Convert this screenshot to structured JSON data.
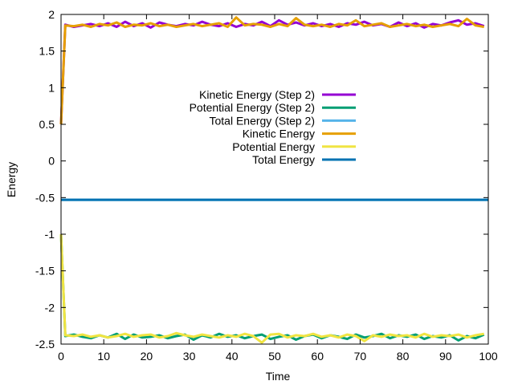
{
  "chart_data": {
    "type": "line",
    "title": "",
    "xlabel": "Time",
    "ylabel": "Energy",
    "xlim": [
      0,
      100
    ],
    "ylim": [
      -2.5,
      2
    ],
    "xticks": [
      "0",
      "10",
      "20",
      "30",
      "40",
      "50",
      "60",
      "70",
      "80",
      "90",
      "100"
    ],
    "yticks": [
      "-2.5",
      "-2",
      "-1.5",
      "-1",
      "-0.5",
      "0",
      "0.5",
      "1",
      "1.5",
      "2"
    ],
    "xtick_values": [
      0,
      10,
      20,
      30,
      40,
      50,
      60,
      70,
      80,
      90,
      100
    ],
    "ytick_values": [
      -2.5,
      -2,
      -1.5,
      -1,
      -0.5,
      0,
      0.5,
      1,
      1.5,
      2
    ],
    "grid": false,
    "legend_position": "center",
    "series": [
      {
        "name": "Kinetic Energy (Step 2)",
        "color": "#9400d3",
        "x": [
          0,
          1,
          3,
          5,
          7,
          9,
          11,
          13,
          15,
          17,
          19,
          21,
          23,
          25,
          27,
          29,
          31,
          33,
          35,
          37,
          39,
          41,
          43,
          45,
          47,
          49,
          51,
          53,
          55,
          57,
          59,
          61,
          63,
          65,
          67,
          69,
          71,
          73,
          75,
          77,
          79,
          81,
          83,
          85,
          87,
          89,
          91,
          93,
          95,
          97,
          99
        ],
        "values": [
          0.5,
          1.86,
          1.83,
          1.85,
          1.87,
          1.84,
          1.88,
          1.83,
          1.9,
          1.84,
          1.88,
          1.82,
          1.89,
          1.86,
          1.84,
          1.87,
          1.85,
          1.9,
          1.86,
          1.84,
          1.88,
          1.83,
          1.87,
          1.85,
          1.9,
          1.84,
          1.92,
          1.86,
          1.89,
          1.85,
          1.88,
          1.84,
          1.87,
          1.83,
          1.88,
          1.86,
          1.9,
          1.85,
          1.87,
          1.83,
          1.89,
          1.84,
          1.88,
          1.82,
          1.87,
          1.85,
          1.89,
          1.92,
          1.86,
          1.88,
          1.84
        ]
      },
      {
        "name": "Potential Energy (Step 2)",
        "color": "#009e73",
        "x": [
          0,
          1,
          3,
          5,
          7,
          9,
          11,
          13,
          15,
          17,
          19,
          21,
          23,
          25,
          27,
          29,
          31,
          33,
          35,
          37,
          39,
          41,
          43,
          45,
          47,
          49,
          51,
          53,
          55,
          57,
          59,
          61,
          63,
          65,
          67,
          69,
          71,
          73,
          75,
          77,
          79,
          81,
          83,
          85,
          87,
          89,
          91,
          93,
          95,
          97,
          99
        ],
        "values": [
          -1.0,
          -2.39,
          -2.37,
          -2.4,
          -2.42,
          -2.38,
          -2.41,
          -2.36,
          -2.43,
          -2.37,
          -2.41,
          -2.4,
          -2.38,
          -2.42,
          -2.39,
          -2.37,
          -2.44,
          -2.38,
          -2.41,
          -2.36,
          -2.4,
          -2.38,
          -2.42,
          -2.39,
          -2.37,
          -2.43,
          -2.4,
          -2.38,
          -2.44,
          -2.39,
          -2.37,
          -2.42,
          -2.38,
          -2.4,
          -2.43,
          -2.37,
          -2.41,
          -2.39,
          -2.36,
          -2.42,
          -2.38,
          -2.4,
          -2.37,
          -2.43,
          -2.39,
          -2.41,
          -2.38,
          -2.45,
          -2.39,
          -2.42,
          -2.37
        ]
      },
      {
        "name": "Total Energy (Step 2)",
        "color": "#56b4e9",
        "x": [
          0,
          100
        ],
        "values": [
          -0.53,
          -0.53
        ]
      },
      {
        "name": "Kinetic Energy",
        "color": "#e69f00",
        "x": [
          0,
          1,
          3,
          5,
          7,
          9,
          11,
          13,
          15,
          17,
          19,
          21,
          23,
          25,
          27,
          29,
          31,
          33,
          35,
          37,
          39,
          41,
          43,
          45,
          47,
          49,
          51,
          53,
          55,
          57,
          59,
          61,
          63,
          65,
          67,
          69,
          71,
          73,
          75,
          77,
          79,
          81,
          83,
          85,
          87,
          89,
          91,
          93,
          95,
          97,
          99
        ],
        "values": [
          0.5,
          1.85,
          1.84,
          1.86,
          1.83,
          1.87,
          1.85,
          1.89,
          1.83,
          1.86,
          1.85,
          1.88,
          1.84,
          1.86,
          1.83,
          1.85,
          1.87,
          1.84,
          1.86,
          1.88,
          1.83,
          1.96,
          1.85,
          1.87,
          1.86,
          1.83,
          1.87,
          1.84,
          1.95,
          1.86,
          1.84,
          1.86,
          1.83,
          1.87,
          1.85,
          1.92,
          1.84,
          1.86,
          1.88,
          1.83,
          1.85,
          1.87,
          1.84,
          1.86,
          1.83,
          1.85,
          1.87,
          1.84,
          1.94,
          1.85,
          1.83
        ]
      },
      {
        "name": "Potential Energy",
        "color": "#f0e442",
        "x": [
          0,
          1,
          3,
          5,
          7,
          9,
          11,
          13,
          15,
          17,
          19,
          21,
          23,
          25,
          27,
          29,
          31,
          33,
          35,
          37,
          39,
          41,
          43,
          45,
          47,
          49,
          51,
          53,
          55,
          57,
          59,
          61,
          63,
          65,
          67,
          69,
          71,
          73,
          75,
          77,
          79,
          81,
          83,
          85,
          87,
          89,
          91,
          93,
          95,
          97,
          99
        ],
        "values": [
          -1.0,
          -2.38,
          -2.39,
          -2.37,
          -2.4,
          -2.38,
          -2.41,
          -2.39,
          -2.36,
          -2.4,
          -2.38,
          -2.37,
          -2.41,
          -2.39,
          -2.35,
          -2.38,
          -2.4,
          -2.37,
          -2.39,
          -2.41,
          -2.38,
          -2.4,
          -2.36,
          -2.39,
          -2.48,
          -2.37,
          -2.36,
          -2.41,
          -2.38,
          -2.39,
          -2.36,
          -2.4,
          -2.38,
          -2.41,
          -2.37,
          -2.39,
          -2.46,
          -2.38,
          -2.4,
          -2.37,
          -2.39,
          -2.38,
          -2.41,
          -2.36,
          -2.4,
          -2.38,
          -2.39,
          -2.37,
          -2.41,
          -2.38,
          -2.36
        ]
      },
      {
        "name": "Total Energy",
        "color": "#0072b2",
        "x": [
          0,
          100
        ],
        "values": [
          -0.53,
          -0.53
        ]
      }
    ]
  }
}
